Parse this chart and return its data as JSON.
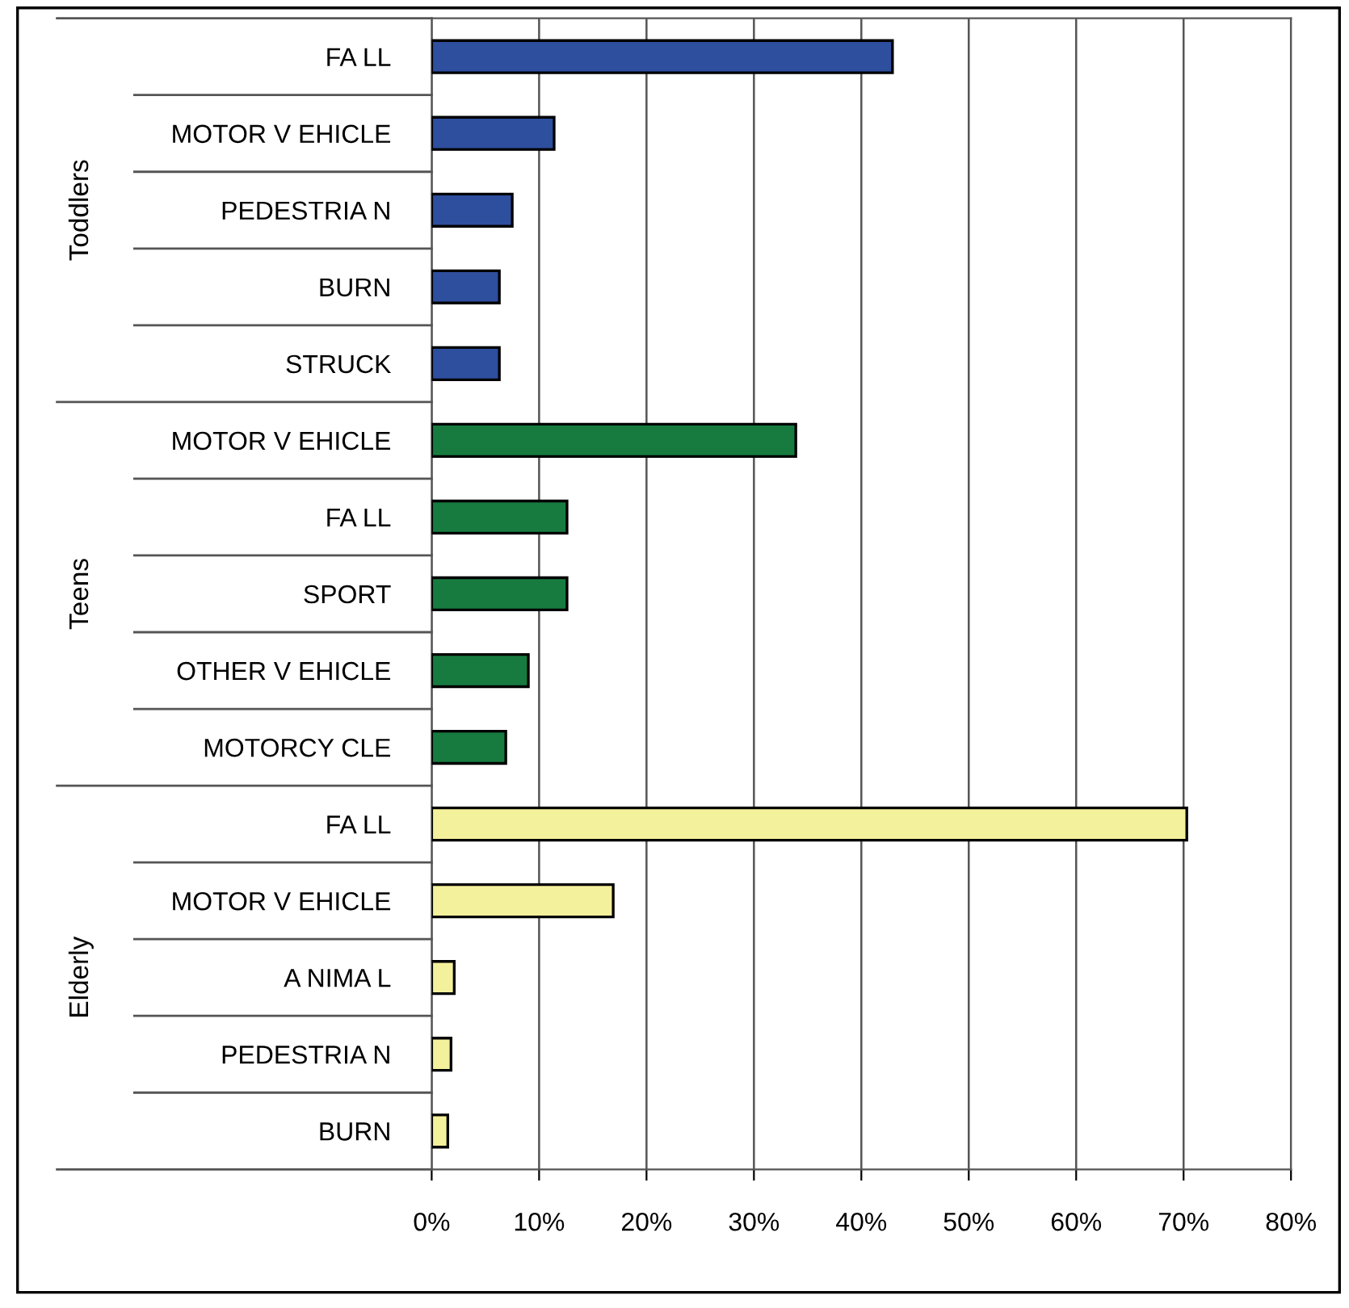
{
  "chart_data": {
    "type": "bar",
    "orientation": "horizontal",
    "categories": [
      "FA LL",
      "MOTOR V EHICLE",
      "PEDESTRIA N",
      "BURN",
      "STRUCK",
      "MOTOR V EHICLE",
      "FA LL",
      "SPORT",
      "OTHER V EHICLE",
      "MOTORCY CLE",
      "FA LL",
      "MOTOR V EHICLE",
      "A NIMA L",
      "PEDESTRIA N",
      "BURN"
    ],
    "series": [
      {
        "color": "#2e4e9e",
        "values": [
          42.9,
          11.4,
          7.5,
          6.3,
          6.3,
          null,
          null,
          null,
          null,
          null,
          null,
          null,
          null,
          null,
          null
        ]
      },
      {
        "color": "#177b40",
        "values": [
          null,
          null,
          null,
          null,
          null,
          33.9,
          12.6,
          12.6,
          9.0,
          6.9,
          null,
          null,
          null,
          null,
          null
        ]
      },
      {
        "color": "#f4f19c",
        "values": [
          null,
          null,
          null,
          null,
          null,
          null,
          null,
          null,
          null,
          null,
          70.3,
          16.9,
          2.1,
          1.8,
          1.5
        ]
      }
    ],
    "xlim": [
      0,
      80
    ],
    "xticks": [
      {
        "value": 0,
        "label": "0%"
      },
      {
        "value": 10,
        "label": "10%"
      },
      {
        "value": 20,
        "label": "20%"
      },
      {
        "value": 30,
        "label": "30%"
      },
      {
        "value": 40,
        "label": "40%"
      },
      {
        "value": 50,
        "label": "50%"
      },
      {
        "value": 60,
        "label": "60%"
      },
      {
        "value": 70,
        "label": "70%"
      },
      {
        "value": 80,
        "label": "80%"
      }
    ],
    "annotations": [
      "Toddlers",
      "Teens",
      "Elderly"
    ],
    "grid": "x",
    "legend": false
  }
}
